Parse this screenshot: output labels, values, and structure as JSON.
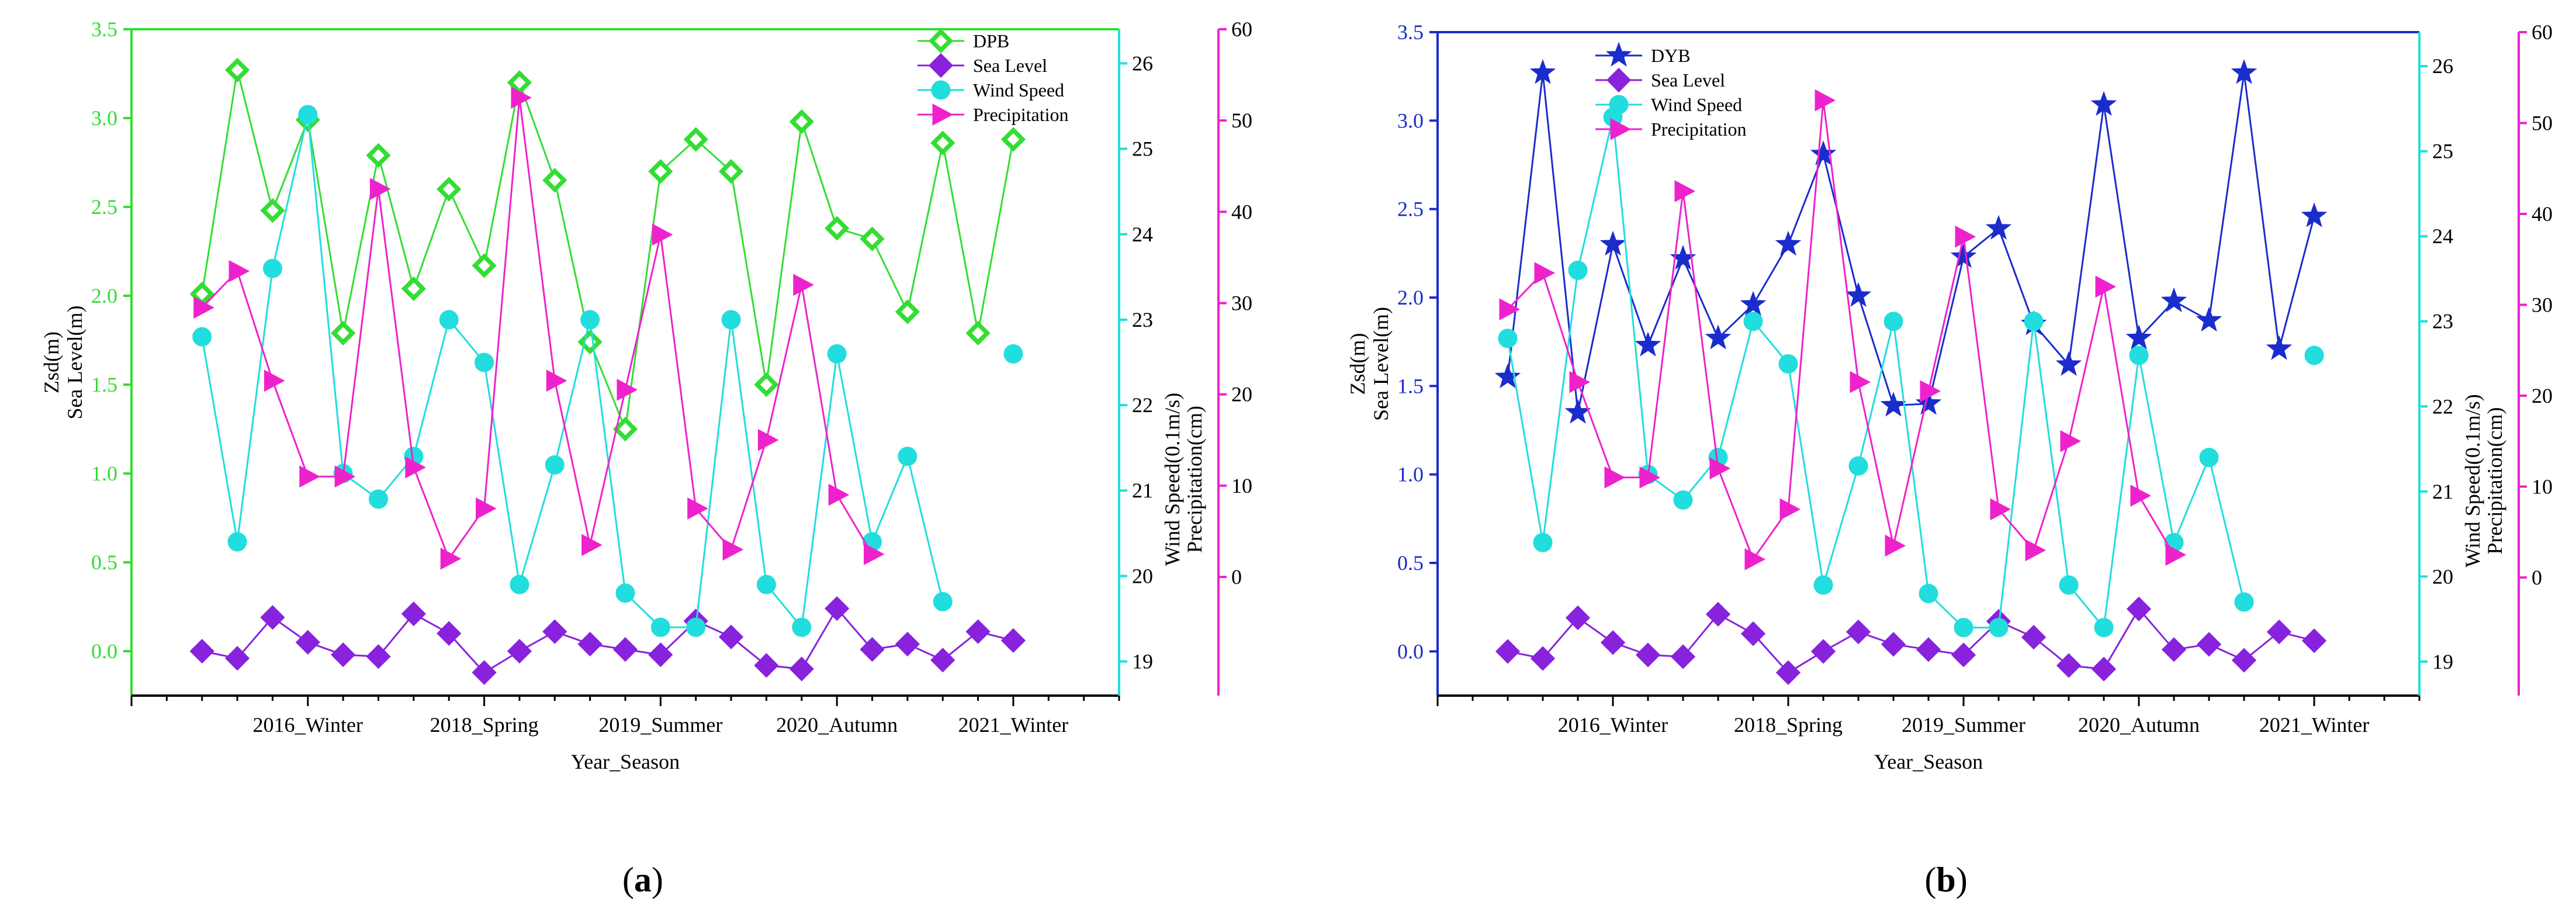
{
  "chart_data": [
    {
      "panel_label_prefix": "(",
      "panel_letter": "a",
      "panel_label_suffix": ")",
      "type": "line",
      "xlabel": "Year_Season",
      "x_tick_labels": [
        "2016_Winter",
        "2018_Spring",
        "2019_Summer",
        "2020_Autumn",
        "2021_Winter"
      ],
      "x_tick_positions": [
        5,
        10,
        15,
        20,
        25
      ],
      "x_range": [
        0,
        28
      ],
      "left_axis": {
        "labels": [
          "Zsd(m)",
          "Sea Level(m)"
        ],
        "ylim": [
          -0.25,
          3.5
        ],
        "ticks": [
          "0.0",
          "0.5",
          "1.0",
          "1.5",
          "2.0",
          "2.5",
          "3.0",
          "3.5"
        ],
        "color": "#33dd33"
      },
      "wind_axis": {
        "label": "Wind Speed(0.1m/s)",
        "ylim": [
          18.6,
          26.4
        ],
        "ticks": [
          "19",
          "20",
          "21",
          "22",
          "23",
          "24",
          "25",
          "26"
        ],
        "color": "#22dddd"
      },
      "precip_axis": {
        "label": "Precipitation(cm)",
        "ylim": [
          -13,
          60
        ],
        "ticks": [
          "0",
          "10",
          "20",
          "30",
          "40",
          "50",
          "60"
        ],
        "color": "#ee22cc"
      },
      "series": [
        {
          "name": "DPB",
          "axis": "left",
          "color": "#33dd33",
          "marker": "diamond-open",
          "x": [
            2,
            3,
            4,
            5,
            6,
            7,
            8,
            9,
            10,
            11,
            12,
            13,
            14,
            15,
            16,
            17,
            18,
            19,
            20,
            21,
            22,
            23,
            24,
            25
          ],
          "values": [
            2.01,
            3.27,
            2.48,
            2.99,
            1.79,
            2.79,
            2.04,
            2.6,
            2.17,
            3.2,
            2.65,
            1.74,
            1.25,
            2.7,
            2.88,
            2.7,
            1.5,
            2.98,
            2.38,
            2.32,
            1.91,
            2.86,
            1.79,
            2.88
          ]
        },
        {
          "name": "Sea Level",
          "axis": "left",
          "color": "#8822dd",
          "marker": "diamond",
          "x": [
            2,
            3,
            4,
            5,
            6,
            7,
            8,
            9,
            10,
            11,
            12,
            13,
            14,
            15,
            16,
            17,
            18,
            19,
            20,
            21,
            22,
            23,
            24,
            25
          ],
          "values": [
            0.0,
            -0.04,
            0.19,
            0.05,
            -0.02,
            -0.03,
            0.21,
            0.1,
            -0.12,
            0.0,
            0.11,
            0.04,
            0.01,
            -0.02,
            0.17,
            0.08,
            -0.08,
            -0.1,
            0.24,
            0.01,
            0.04,
            -0.05,
            0.11,
            0.06
          ]
        },
        {
          "name": "Wind Speed",
          "axis": "wind",
          "color": "#22dddd",
          "marker": "circle",
          "x": [
            2,
            3,
            4,
            5,
            6,
            7,
            8,
            9,
            10,
            11,
            12,
            13,
            14,
            15,
            16,
            17,
            18,
            19,
            20,
            21,
            22,
            23,
            25
          ],
          "values": [
            22.8,
            20.4,
            23.6,
            25.4,
            21.2,
            20.9,
            21.4,
            23.0,
            22.5,
            19.9,
            21.3,
            23.0,
            19.8,
            19.4,
            19.4,
            23.0,
            19.9,
            19.4,
            22.6,
            20.4,
            21.4,
            19.7,
            22.6
          ]
        },
        {
          "name": "Precipitation",
          "axis": "precip",
          "color": "#ee22cc",
          "marker": "triangle-right",
          "x": [
            2,
            3,
            4,
            5,
            6,
            7,
            8,
            9,
            10,
            11,
            12,
            13,
            14,
            15,
            16,
            17,
            18,
            19,
            20,
            21
          ],
          "values": [
            29.5,
            33.5,
            21.5,
            11,
            11,
            42.5,
            12,
            2,
            7.5,
            52.5,
            21.5,
            3.5,
            20.5,
            37.5,
            7.5,
            3,
            15,
            32,
            9,
            2.5
          ]
        }
      ]
    },
    {
      "panel_label_prefix": "(",
      "panel_letter": "b",
      "panel_label_suffix": ")",
      "type": "line",
      "xlabel": "Year_Season",
      "x_tick_labels": [
        "2016_Winter",
        "2018_Spring",
        "2019_Summer",
        "2020_Autumn",
        "2021_Winter"
      ],
      "x_tick_positions": [
        5,
        10,
        15,
        20,
        25
      ],
      "x_range": [
        0,
        28
      ],
      "left_axis": {
        "labels": [
          "Zsd(m)",
          "Sea Level(m)"
        ],
        "ylim": [
          -0.25,
          3.5
        ],
        "ticks": [
          "0.0",
          "0.5",
          "1.0",
          "1.5",
          "2.0",
          "2.5",
          "3.0",
          "3.5"
        ],
        "color": "#1a2ccc"
      },
      "wind_axis": {
        "label": "Wind Speed(0.1m/s)",
        "ylim": [
          18.6,
          26.4
        ],
        "ticks": [
          "19",
          "20",
          "21",
          "22",
          "23",
          "24",
          "25",
          "26"
        ],
        "color": "#22dddd"
      },
      "precip_axis": {
        "label": "Precipitation(cm)",
        "ylim": [
          -13,
          60
        ],
        "ticks": [
          "0",
          "10",
          "20",
          "30",
          "40",
          "50",
          "60"
        ],
        "color": "#ee22cc"
      },
      "series": [
        {
          "name": "DYB",
          "axis": "left",
          "color": "#1a2ccc",
          "marker": "star",
          "x": [
            2,
            3,
            4,
            5,
            6,
            7,
            8,
            9,
            10,
            11,
            12,
            13,
            14,
            15,
            16,
            17,
            18,
            19,
            20,
            21,
            22,
            23,
            24,
            25
          ],
          "values": [
            1.55,
            3.27,
            1.35,
            2.3,
            1.73,
            2.22,
            1.77,
            1.96,
            2.3,
            2.81,
            2.01,
            1.39,
            1.4,
            2.23,
            2.39,
            1.85,
            1.62,
            3.09,
            1.77,
            1.98,
            1.87,
            3.27,
            1.71,
            2.46
          ]
        },
        {
          "name": "Sea Level",
          "axis": "left",
          "color": "#8822dd",
          "marker": "diamond",
          "x": [
            2,
            3,
            4,
            5,
            6,
            7,
            8,
            9,
            10,
            11,
            12,
            13,
            14,
            15,
            16,
            17,
            18,
            19,
            20,
            21,
            22,
            23,
            24,
            25
          ],
          "values": [
            0.0,
            -0.04,
            0.19,
            0.05,
            -0.02,
            -0.03,
            0.21,
            0.1,
            -0.12,
            0.0,
            0.11,
            0.04,
            0.01,
            -0.02,
            0.17,
            0.08,
            -0.08,
            -0.1,
            0.24,
            0.01,
            0.04,
            -0.05,
            0.11,
            0.06
          ]
        },
        {
          "name": "Wind Speed",
          "axis": "wind",
          "color": "#22dddd",
          "marker": "circle",
          "x": [
            2,
            3,
            4,
            5,
            6,
            7,
            8,
            9,
            10,
            11,
            12,
            13,
            14,
            15,
            16,
            17,
            18,
            19,
            20,
            21,
            22,
            23,
            25
          ],
          "values": [
            22.8,
            20.4,
            23.6,
            25.4,
            21.2,
            20.9,
            21.4,
            23.0,
            22.5,
            19.9,
            21.3,
            23.0,
            19.8,
            19.4,
            19.4,
            23.0,
            19.9,
            19.4,
            22.6,
            20.4,
            21.4,
            19.7,
            22.6
          ]
        },
        {
          "name": "Precipitation",
          "axis": "precip",
          "color": "#ee22cc",
          "marker": "triangle-right",
          "x": [
            2,
            3,
            4,
            5,
            6,
            7,
            8,
            9,
            10,
            11,
            12,
            13,
            14,
            15,
            16,
            17,
            18,
            19,
            20,
            21
          ],
          "values": [
            29.5,
            33.5,
            21.5,
            11,
            11,
            42.5,
            12,
            2,
            7.5,
            52.5,
            21.5,
            3.5,
            20.5,
            37.5,
            7.5,
            3,
            15,
            32,
            9,
            2.5
          ]
        }
      ]
    }
  ]
}
